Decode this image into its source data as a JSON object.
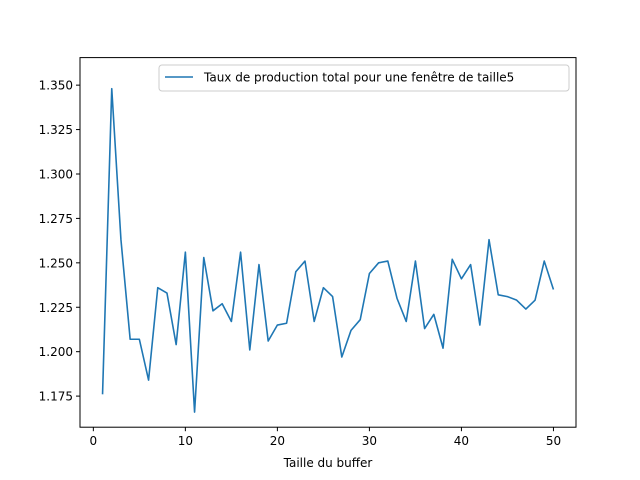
{
  "chart_data": {
    "type": "line",
    "title": "",
    "xlabel": "Taille du buffer",
    "ylabel": "",
    "xlim": [
      -1.45,
      52.45
    ],
    "ylim": [
      1.1575,
      1.3655
    ],
    "xticks": [
      0,
      10,
      20,
      30,
      40,
      50
    ],
    "yticks": [
      1.175,
      1.2,
      1.225,
      1.25,
      1.275,
      1.3,
      1.325,
      1.35
    ],
    "ytick_labels": [
      "1.175",
      "1.200",
      "1.225",
      "1.250",
      "1.275",
      "1.300",
      "1.325",
      "1.350"
    ],
    "grid": false,
    "legend_position": "top-right",
    "series": [
      {
        "name": "Taux de production total pour une fenêtre de taille5",
        "color": "#1f77b4",
        "x": [
          1,
          2,
          3,
          4,
          5,
          6,
          7,
          8,
          9,
          10,
          11,
          12,
          13,
          14,
          15,
          16,
          17,
          18,
          19,
          20,
          21,
          22,
          23,
          24,
          25,
          26,
          27,
          28,
          29,
          30,
          31,
          32,
          33,
          34,
          35,
          36,
          37,
          38,
          39,
          40,
          41,
          42,
          43,
          44,
          45,
          46,
          47,
          48,
          49,
          50
        ],
        "y": [
          1.176,
          1.348,
          1.263,
          1.207,
          1.207,
          1.184,
          1.236,
          1.233,
          1.204,
          1.256,
          1.166,
          1.253,
          1.223,
          1.227,
          1.217,
          1.256,
          1.201,
          1.249,
          1.206,
          1.215,
          1.216,
          1.245,
          1.251,
          1.217,
          1.236,
          1.231,
          1.197,
          1.212,
          1.218,
          1.244,
          1.25,
          1.251,
          1.23,
          1.217,
          1.251,
          1.213,
          1.221,
          1.202,
          1.252,
          1.241,
          1.249,
          1.215,
          1.263,
          1.232,
          1.231,
          1.229,
          1.224,
          1.229,
          1.251,
          1.235
        ]
      }
    ]
  }
}
